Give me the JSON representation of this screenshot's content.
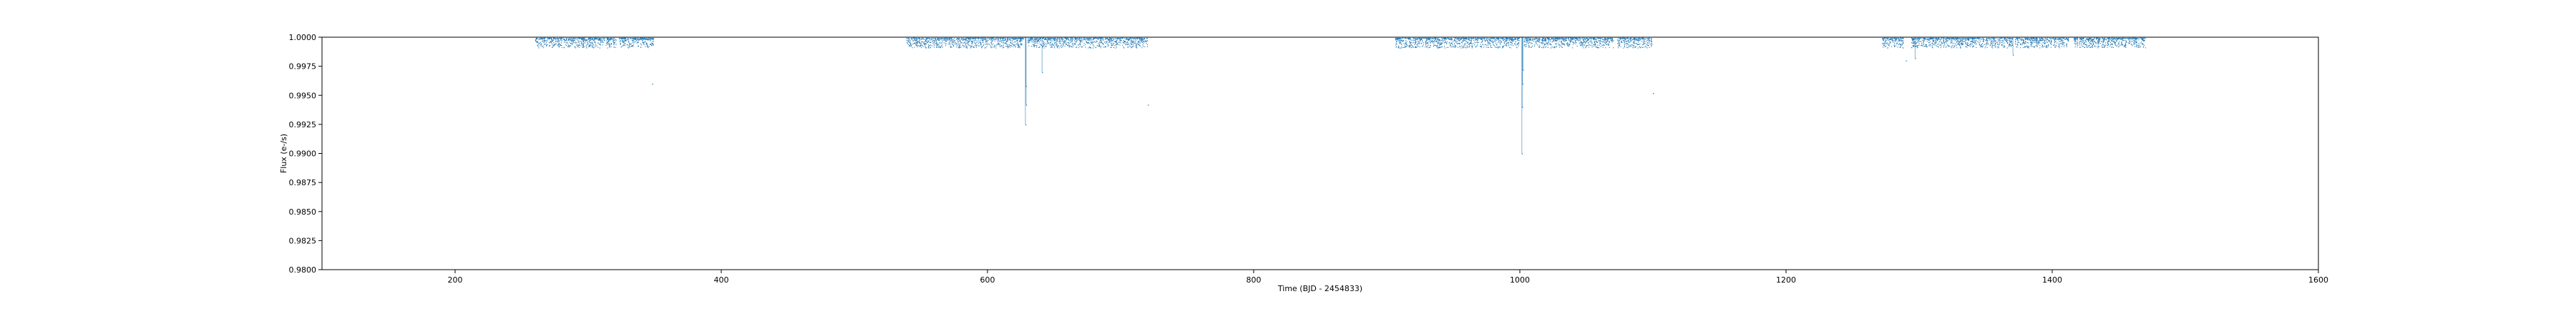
{
  "chart_data": {
    "type": "scatter",
    "title": "",
    "xlabel": "Time (BJD - 2454833)",
    "ylabel": "Flux (e-/s)",
    "xlim": [
      100,
      1600
    ],
    "ylim": [
      0.98,
      1.0
    ],
    "xticks": [
      200,
      400,
      600,
      800,
      1000,
      1200,
      1400,
      1600
    ],
    "yticks": [
      0.98,
      0.9825,
      0.985,
      0.9875,
      0.99,
      0.9925,
      0.995,
      0.9975,
      1.0
    ],
    "ytick_labels": [
      "0.9800",
      "0.9825",
      "0.9850",
      "0.9875",
      "0.9900",
      "0.9925",
      "0.9950",
      "0.9975",
      "1.0000"
    ],
    "grid": false,
    "marker_color": "#1f77b4",
    "segments": [
      {
        "start": 260,
        "end": 321
      },
      {
        "start": 323,
        "end": 349
      },
      {
        "start": 539,
        "end": 627
      },
      {
        "start": 630,
        "end": 720
      },
      {
        "start": 906,
        "end": 1000
      },
      {
        "start": 1003,
        "end": 1070
      },
      {
        "start": 1073,
        "end": 1099
      },
      {
        "start": 1272,
        "end": 1288
      },
      {
        "start": 1294,
        "end": 1370
      },
      {
        "start": 1372,
        "end": 1412
      },
      {
        "start": 1416,
        "end": 1470
      }
    ],
    "dips": [
      {
        "x": 628.5,
        "y": 0.9925
      },
      {
        "x": 629.0,
        "y": 0.9942
      },
      {
        "x": 628.8,
        "y": 0.9958
      },
      {
        "x": 641.0,
        "y": 0.997
      },
      {
        "x": 1001.5,
        "y": 0.99
      },
      {
        "x": 1001.8,
        "y": 0.994
      },
      {
        "x": 1002.0,
        "y": 0.996
      },
      {
        "x": 1002.3,
        "y": 0.9972
      },
      {
        "x": 1297.0,
        "y": 0.9982
      },
      {
        "x": 1370.5,
        "y": 0.9985
      }
    ],
    "outliers": [
      {
        "x": 348.0,
        "y": 0.996
      },
      {
        "x": 720.5,
        "y": 0.9942
      },
      {
        "x": 1100.0,
        "y": 0.9952
      },
      {
        "x": 1290.0,
        "y": 0.998
      }
    ]
  }
}
